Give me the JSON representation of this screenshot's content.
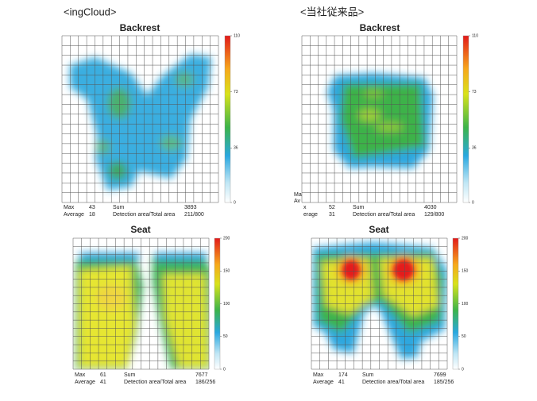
{
  "headers": [
    "<ingCloud>",
    "<当社従来品>"
  ],
  "panels": [
    {
      "title": "Backrest",
      "colorbar_range": [
        0,
        110
      ],
      "colorbar_ticks": [
        0,
        36,
        73,
        110
      ],
      "stats": {
        "max_label": "Max",
        "max": 43,
        "average_label": "Average",
        "average": 18,
        "sum_label": "Sum",
        "sum": 3893,
        "area_label": "Detection area/Total area",
        "area": "211/800"
      }
    },
    {
      "title": "Backrest",
      "colorbar_range": [
        0,
        110
      ],
      "colorbar_ticks": [
        0,
        36,
        73,
        110
      ],
      "stats": {
        "max_label": "x",
        "max": 52,
        "average_label": "erage",
        "average": 31,
        "sum_label": "Sum",
        "sum": 4030,
        "area_label": "Detection area/Total area",
        "area": "129/800"
      },
      "clipped_labels": [
        "Ma",
        "Av"
      ]
    },
    {
      "title": "Seat",
      "colorbar_range": [
        0,
        200
      ],
      "colorbar_ticks": [
        0,
        50,
        100,
        150,
        200
      ],
      "stats": {
        "max_label": "Max",
        "max": 61,
        "average_label": "Average",
        "average": 41,
        "sum_label": "Sum",
        "sum": 7677,
        "area_label": "Detection area/Total area",
        "area": "186/256"
      }
    },
    {
      "title": "Seat",
      "colorbar_range": [
        0,
        200
      ],
      "colorbar_ticks": [
        0,
        50,
        100,
        150,
        200
      ],
      "stats": {
        "max_label": "Max",
        "max": 174,
        "average_label": "Average",
        "average": 41,
        "sum_label": "Sum",
        "sum": 7699,
        "area_label": "Detection area/Total area",
        "area": "185/256"
      }
    }
  ]
}
